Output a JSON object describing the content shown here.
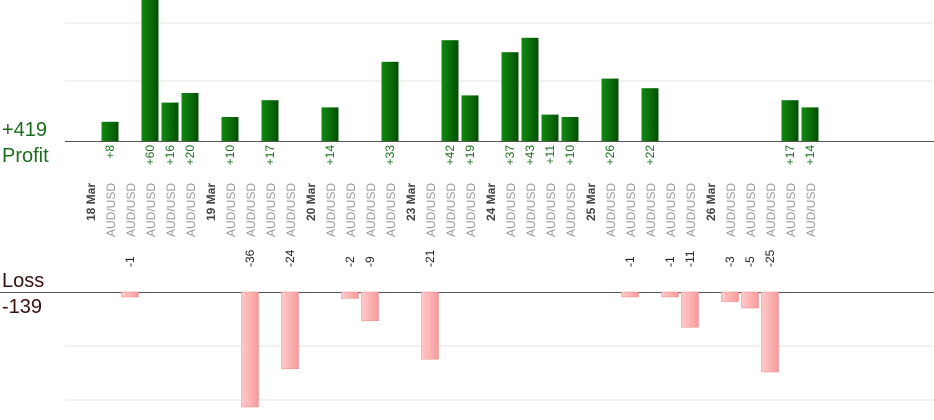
{
  "summary": {
    "profit_total": "+419",
    "profit_label": "Profit",
    "loss_label": "Loss",
    "loss_total": "-139"
  },
  "colors": {
    "profit_bar": "#0b6e0b",
    "loss_bar": "#ffb3b3",
    "profit_text": "#1a6e1a",
    "loss_text": "#3a0f0f"
  },
  "chart_data": {
    "type": "bar",
    "title": "",
    "xlabel": "",
    "ylabel": "",
    "profit_ylim": [
      0,
      60
    ],
    "loss_ylim": [
      -36,
      0
    ],
    "grid": true,
    "categories": [
      {
        "label": "18 Mar",
        "kind": "date"
      },
      {
        "label": "AUD/USD",
        "kind": "pair",
        "value": 8
      },
      {
        "label": "AUD/USD",
        "kind": "pair",
        "value": -1
      },
      {
        "label": "AUD/USD",
        "kind": "pair",
        "value": 60
      },
      {
        "label": "AUD/USD",
        "kind": "pair",
        "value": 16
      },
      {
        "label": "AUD/USD",
        "kind": "pair",
        "value": 20
      },
      {
        "label": "19 Mar",
        "kind": "date"
      },
      {
        "label": "AUD/USD",
        "kind": "pair",
        "value": 10
      },
      {
        "label": "AUD/USD",
        "kind": "pair",
        "value": -36
      },
      {
        "label": "AUD/USD",
        "kind": "pair",
        "value": 17
      },
      {
        "label": "AUD/USD",
        "kind": "pair",
        "value": -24
      },
      {
        "label": "20 Mar",
        "kind": "date"
      },
      {
        "label": "AUD/USD",
        "kind": "pair",
        "value": 14
      },
      {
        "label": "AUD/USD",
        "kind": "pair",
        "value": -2
      },
      {
        "label": "AUD/USD",
        "kind": "pair",
        "value": -9
      },
      {
        "label": "AUD/USD",
        "kind": "pair",
        "value": 33
      },
      {
        "label": "23 Mar",
        "kind": "date"
      },
      {
        "label": "AUD/USD",
        "kind": "pair",
        "value": -21
      },
      {
        "label": "AUD/USD",
        "kind": "pair",
        "value": 42
      },
      {
        "label": "AUD/USD",
        "kind": "pair",
        "value": 19
      },
      {
        "label": "24 Mar",
        "kind": "date"
      },
      {
        "label": "AUD/USD",
        "kind": "pair",
        "value": 37
      },
      {
        "label": "AUD/USD",
        "kind": "pair",
        "value": 43
      },
      {
        "label": "AUD/USD",
        "kind": "pair",
        "value": 11
      },
      {
        "label": "AUD/USD",
        "kind": "pair",
        "value": 10
      },
      {
        "label": "25 Mar",
        "kind": "date"
      },
      {
        "label": "AUD/USD",
        "kind": "pair",
        "value": 26
      },
      {
        "label": "AUD/USD",
        "kind": "pair",
        "value": -1
      },
      {
        "label": "AUD/USD",
        "kind": "pair",
        "value": 22
      },
      {
        "label": "AUD/USD",
        "kind": "pair",
        "value": -1
      },
      {
        "label": "AUD/USD",
        "kind": "pair",
        "value": -11
      },
      {
        "label": "26 Mar",
        "kind": "date"
      },
      {
        "label": "AUD/USD",
        "kind": "pair",
        "value": -3
      },
      {
        "label": "AUD/USD",
        "kind": "pair",
        "value": -5
      },
      {
        "label": "AUD/USD",
        "kind": "pair",
        "value": -25
      },
      {
        "label": "AUD/USD",
        "kind": "pair",
        "value": 17
      },
      {
        "label": "AUD/USD",
        "kind": "pair",
        "value": 14
      }
    ]
  }
}
